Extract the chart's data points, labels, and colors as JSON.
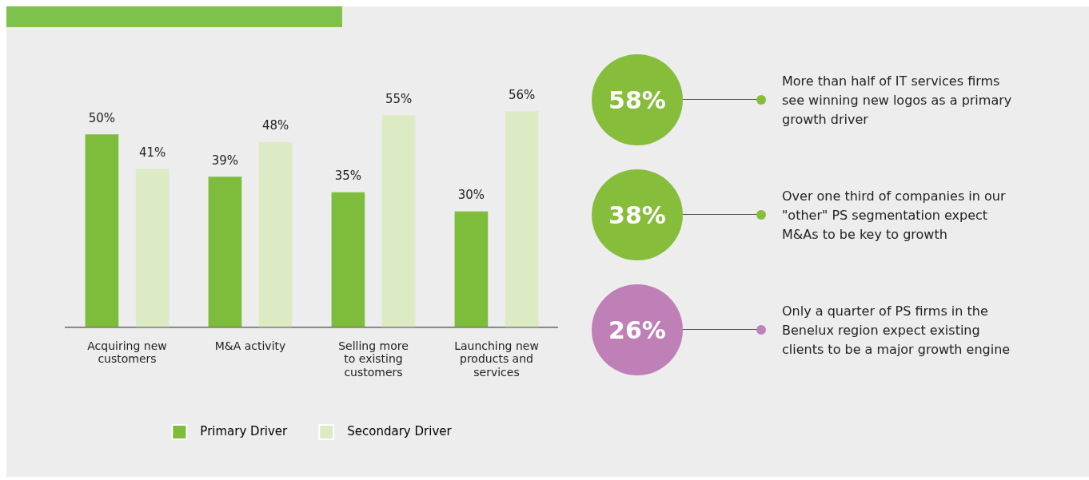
{
  "chart_data": [
    {
      "type": "bar",
      "categories": [
        "Acquiring new customers",
        "M&A activity",
        "Selling more to existing customers",
        "Launching new products and services"
      ],
      "series": [
        {
          "name": "Primary Driver",
          "color": "#7dbd3b",
          "values": [
            50,
            39,
            35,
            30
          ],
          "value_labels": [
            "50%",
            "39%",
            "35%",
            "30%"
          ]
        },
        {
          "name": "Secondary Driver",
          "color": "#dcebc4",
          "values": [
            41,
            48,
            55,
            56
          ],
          "value_labels": [
            "41%",
            "48%",
            "55%",
            "56%"
          ]
        }
      ],
      "legend": "bottom",
      "grid": false,
      "tick_labels": "x"
    },
    {
      "type": "other",
      "categories": [
        "More than half of IT services firms see winning new logos as a primary growth driver",
        "Over one third of companies in our \"other\" PS segmentation expect M&As to be key to growth",
        "Only a quarter of PS firms in the Benelux region expect existing clients to be a major growth engine"
      ],
      "value_labels": [
        "58%",
        "38%",
        "26%"
      ],
      "colors": [
        "#86bd3a",
        "#86bd3a",
        "#bf80b8"
      ]
    }
  ]
}
